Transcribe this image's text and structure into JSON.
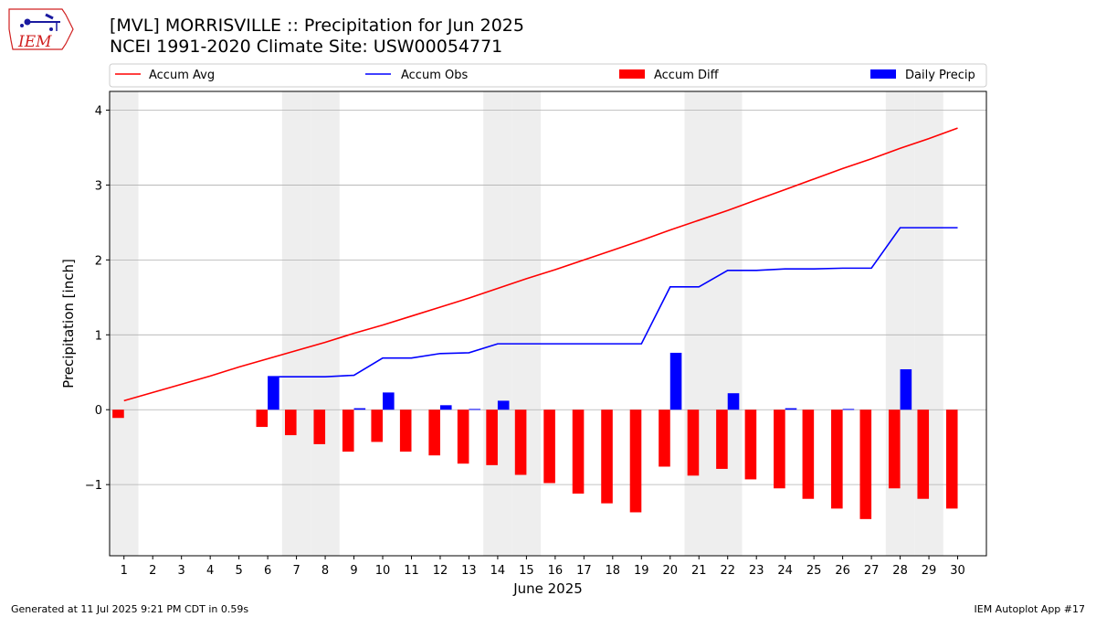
{
  "header": {
    "title": "[MVL] MORRISVILLE :: Precipitation for Jun 2025",
    "subtitle": "NCEI 1991-2020 Climate Site: USW00054771",
    "logo_text": "IEM"
  },
  "footer": {
    "generated": "Generated at 11 Jul 2025 9:21 PM CDT in 0.59s",
    "app": "IEM Autoplot App #17"
  },
  "chart_data": {
    "type": "bar",
    "title": "[MVL] MORRISVILLE :: Precipitation for Jun 2025",
    "subtitle": "NCEI 1991-2020 Climate Site: USW00054771",
    "xlabel": "June 2025",
    "ylabel": "Precipitation [inch]",
    "ylim": [
      -1.95,
      4.25
    ],
    "xlim": [
      0.5,
      31
    ],
    "y_ticks": [
      -1,
      0,
      1,
      2,
      3,
      4
    ],
    "y_tick_labels": [
      "−1",
      "0",
      "1",
      "2",
      "3",
      "4"
    ],
    "x": [
      1,
      2,
      3,
      4,
      5,
      6,
      7,
      8,
      9,
      10,
      11,
      12,
      13,
      14,
      15,
      16,
      17,
      18,
      19,
      20,
      21,
      22,
      23,
      24,
      25,
      26,
      27,
      28,
      29,
      30
    ],
    "x_tick_labels": [
      "1",
      "2",
      "3",
      "4",
      "5",
      "6",
      "7",
      "8",
      "9",
      "10",
      "11",
      "12",
      "13",
      "14",
      "15",
      "16",
      "17",
      "18",
      "19",
      "20",
      "21",
      "22",
      "23",
      "24",
      "25",
      "26",
      "27",
      "28",
      "29",
      "30"
    ],
    "weekend_days": [
      1,
      7,
      8,
      14,
      15,
      21,
      22,
      28,
      29
    ],
    "grid": "horizontal",
    "legend_placement": "top",
    "colors": {
      "accum_avg": "#ff0000",
      "accum_obs": "#0000ff",
      "accum_diff": "#ff0000",
      "daily_precip": "#0000ff",
      "weekend_shade": "#eeeeee",
      "grid": "#b0b0b0"
    },
    "series": [
      {
        "name": "Accum Avg",
        "type": "line",
        "values": [
          0.12,
          0.23,
          0.34,
          0.45,
          0.57,
          0.68,
          0.79,
          0.9,
          1.02,
          1.13,
          1.25,
          1.37,
          1.49,
          1.62,
          1.75,
          1.87,
          2.0,
          2.13,
          2.26,
          2.4,
          2.53,
          2.66,
          2.8,
          2.94,
          3.08,
          3.22,
          3.35,
          3.49,
          3.62,
          3.76
        ]
      },
      {
        "name": "Accum Obs",
        "type": "line",
        "start_day": 6,
        "values": [
          null,
          null,
          null,
          null,
          null,
          0.44,
          0.44,
          0.44,
          0.46,
          0.69,
          0.69,
          0.75,
          0.76,
          0.88,
          0.88,
          0.88,
          0.88,
          0.88,
          0.88,
          1.64,
          1.64,
          1.86,
          1.86,
          1.88,
          1.88,
          1.89,
          1.89,
          2.43,
          2.43,
          2.43
        ]
      },
      {
        "name": "Accum Diff",
        "type": "bar",
        "values": [
          -0.11,
          null,
          null,
          null,
          null,
          -0.23,
          -0.34,
          -0.46,
          -0.56,
          -0.43,
          -0.56,
          -0.61,
          -0.72,
          -0.74,
          -0.87,
          -0.98,
          -1.12,
          -1.25,
          -1.37,
          -0.76,
          -0.88,
          -0.79,
          -0.93,
          -1.05,
          -1.19,
          -1.32,
          -1.46,
          -1.05,
          -1.19,
          -1.32
        ]
      },
      {
        "name": "Daily Precip",
        "type": "bar",
        "values": [
          0,
          0,
          0,
          0,
          0,
          0.44,
          0,
          0,
          0.02,
          0.23,
          0,
          0.06,
          0.01,
          0.12,
          0,
          0,
          0,
          0,
          0,
          0.76,
          0,
          0.22,
          0,
          0.02,
          0,
          0.01,
          0,
          0.54,
          0,
          0
        ]
      }
    ]
  }
}
